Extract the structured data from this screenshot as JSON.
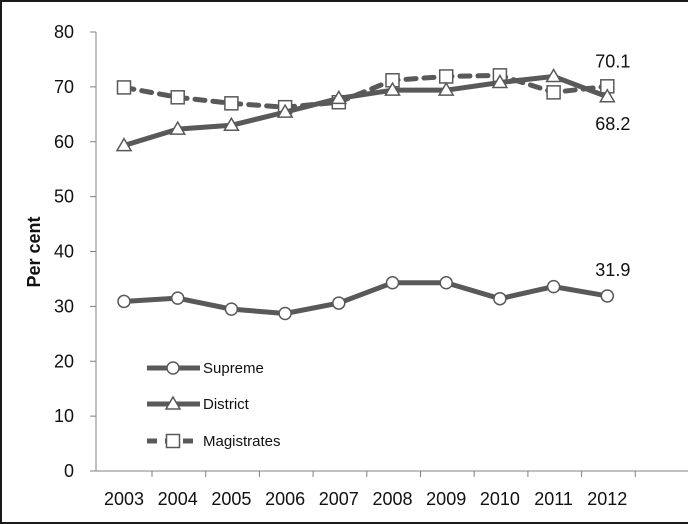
{
  "chart_data": {
    "type": "line",
    "title": "",
    "xlabel": "",
    "ylabel": "Per cent",
    "ylim": [
      0,
      80
    ],
    "yticks": [
      0,
      10,
      20,
      30,
      40,
      50,
      60,
      70,
      80
    ],
    "categories": [
      "2003",
      "2004",
      "2005",
      "2006",
      "2007",
      "2008",
      "2009",
      "2010",
      "2011",
      "2012"
    ],
    "grid": false,
    "legend_position": "bottom-left",
    "series": [
      {
        "name": "Supreme",
        "marker": "circle",
        "dashed": false,
        "values": [
          30.9,
          31.5,
          29.5,
          28.7,
          30.6,
          34.3,
          34.3,
          31.4,
          33.6,
          31.9
        ]
      },
      {
        "name": "District",
        "marker": "triangle",
        "dashed": false,
        "values": [
          59.3,
          62.3,
          63.0,
          65.4,
          67.9,
          69.4,
          69.4,
          70.8,
          71.9,
          68.2
        ]
      },
      {
        "name": "Magistrates",
        "marker": "square",
        "dashed": true,
        "values": [
          69.9,
          68.1,
          67.0,
          66.3,
          67.2,
          71.2,
          71.9,
          72.1,
          69.0,
          70.1
        ]
      }
    ],
    "annotations": [
      {
        "series": "Magistrates",
        "index": 9,
        "text": "70.1"
      },
      {
        "series": "District",
        "index": 9,
        "text": "68.2"
      },
      {
        "series": "Supreme",
        "index": 9,
        "text": "31.9"
      }
    ],
    "colors": {
      "line": "#595959",
      "marker_fill": "#ffffff",
      "axis": "#808080",
      "text": "#111111"
    }
  }
}
